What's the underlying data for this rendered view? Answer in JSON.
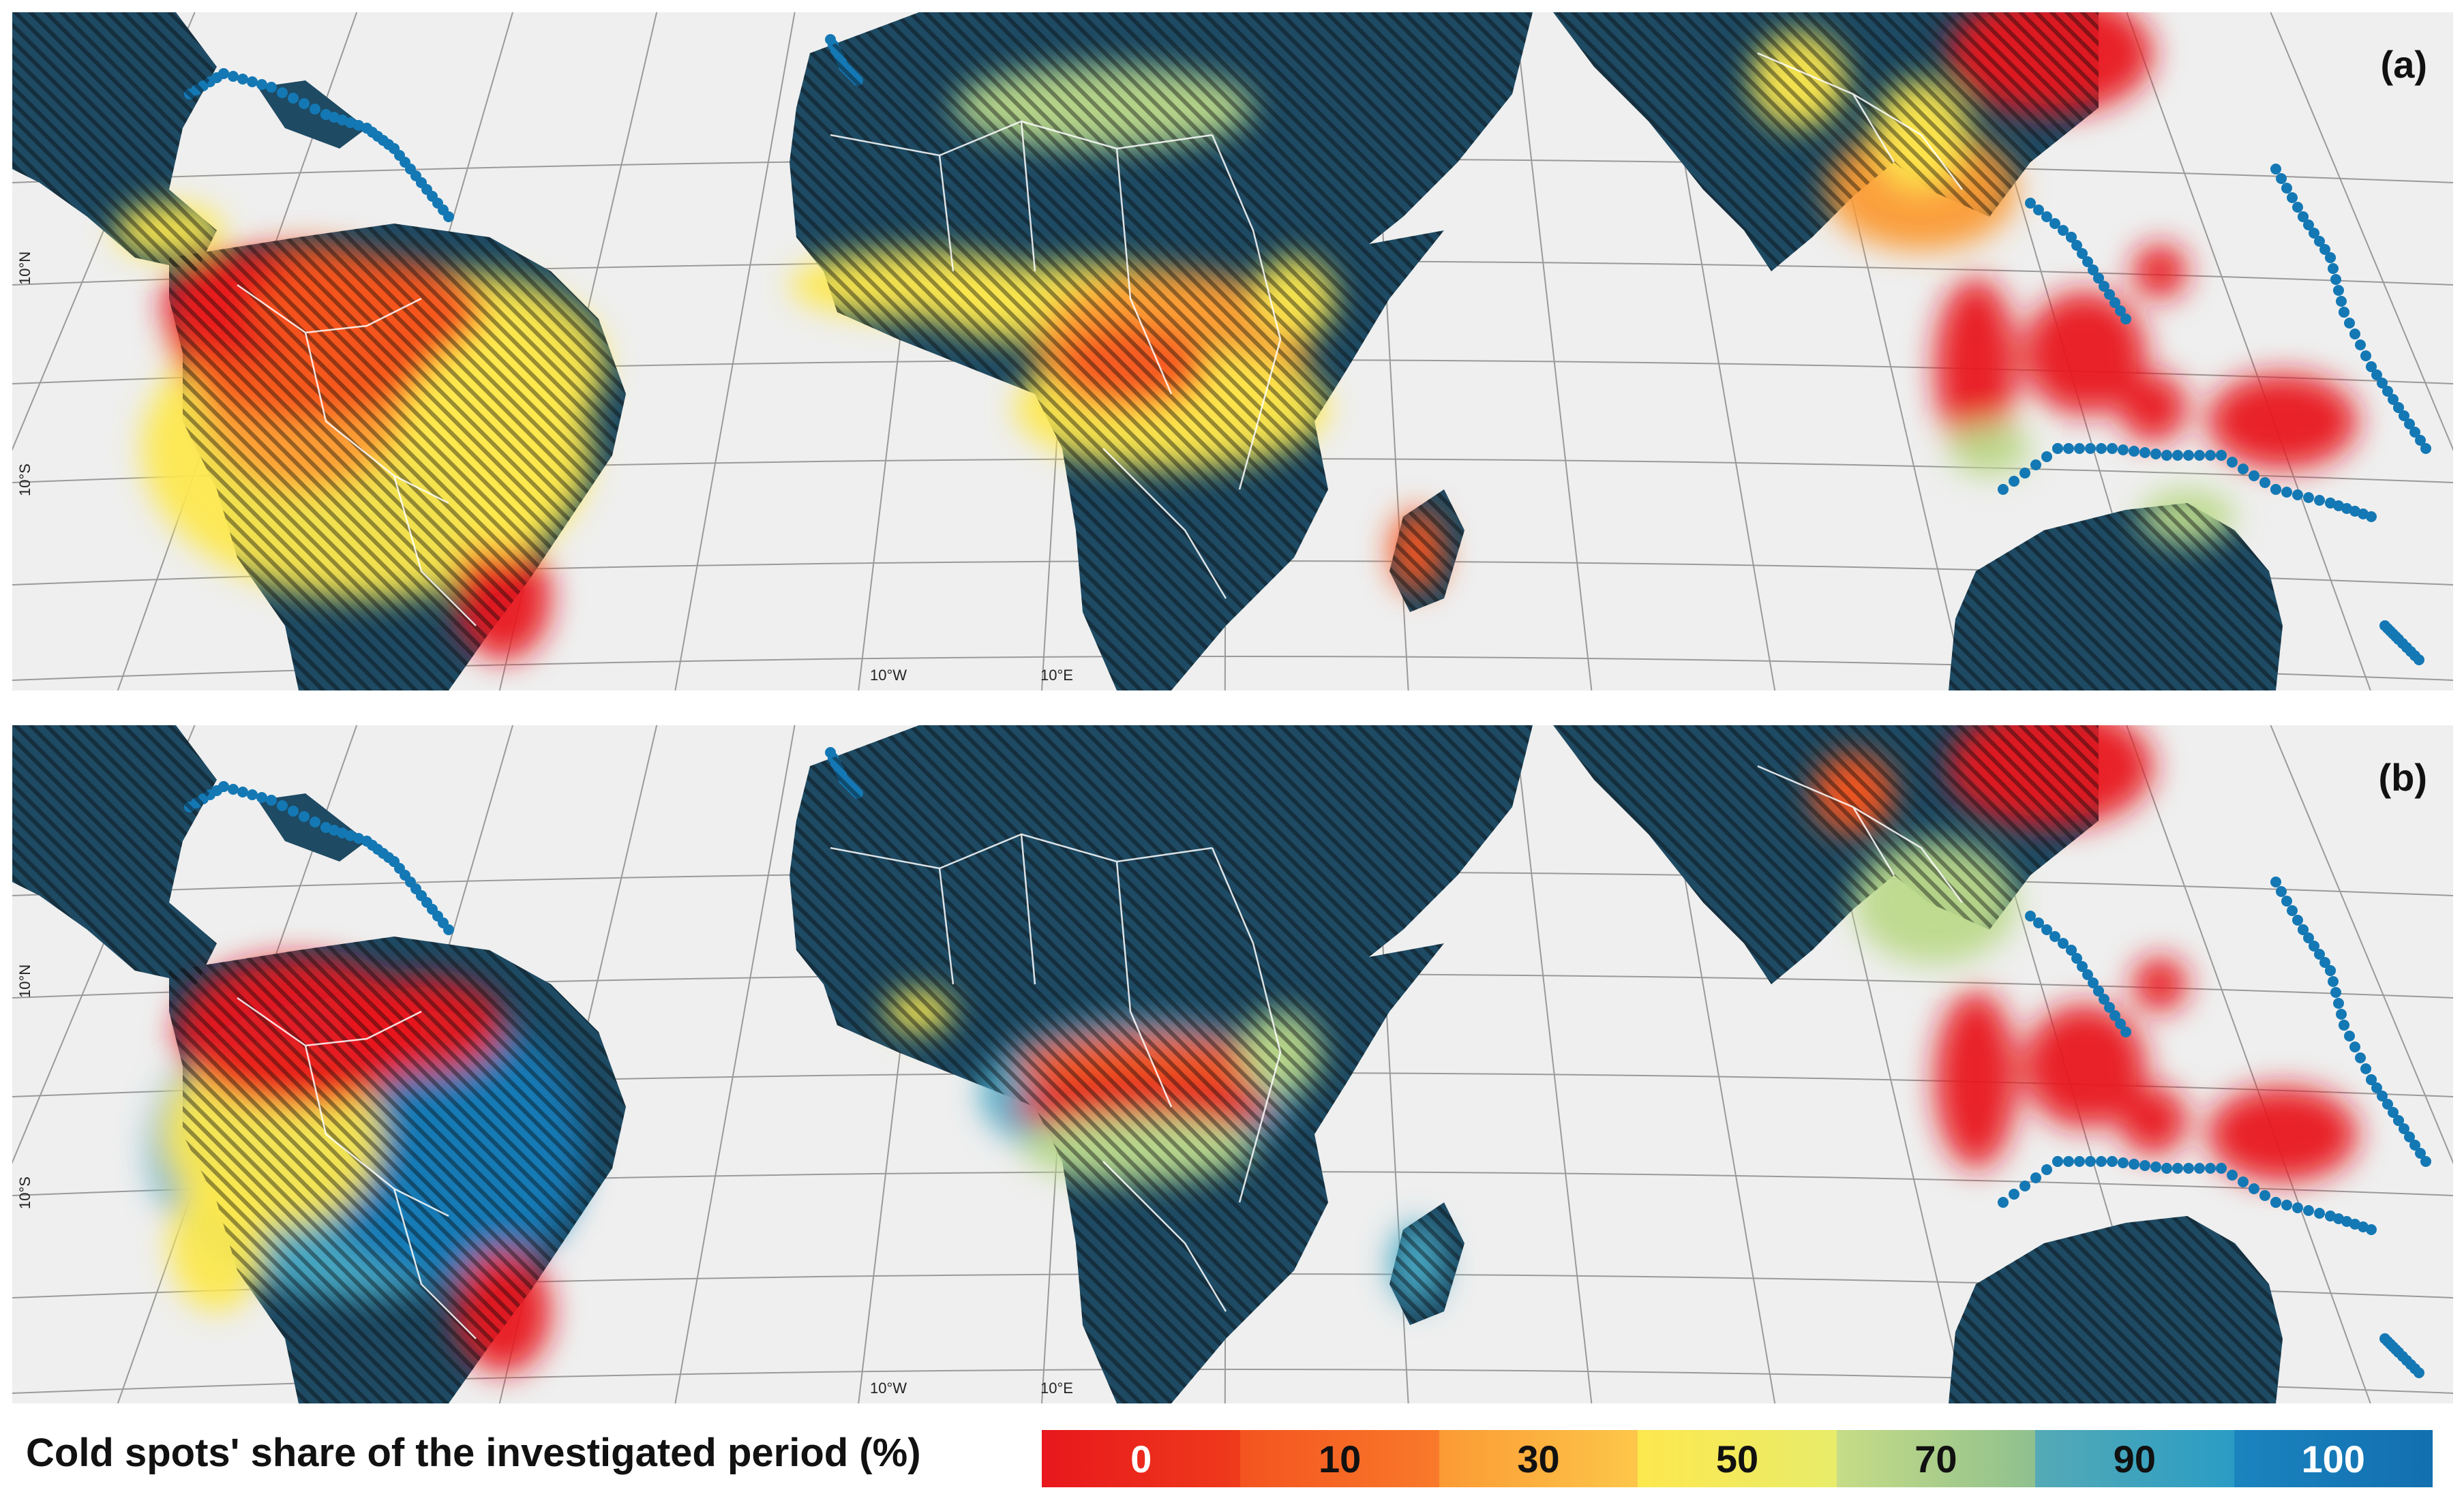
{
  "panels": [
    {
      "label": "(a)"
    },
    {
      "label": "(b)"
    }
  ],
  "graticule": {
    "lat_labels": [
      "10°N",
      "10°S"
    ],
    "lon_labels": [
      "10°W",
      "10°E"
    ]
  },
  "legend": {
    "title": "Cold spots' share of the investigated period (%)",
    "ticks": [
      "0",
      "10",
      "30",
      "50",
      "70",
      "90",
      "100"
    ],
    "tick_text_colors": [
      "#ffffff",
      "#111111",
      "#111111",
      "#111111",
      "#111111",
      "#111111",
      "#ffffff"
    ],
    "colors": [
      "#e8171c",
      "#f4541f",
      "#fb9a33",
      "#fde84e",
      "#bcd98a",
      "#49a9c4",
      "#1478b4"
    ],
    "gradients": [
      [
        "#e8171c",
        "#ef3b1c"
      ],
      [
        "#f4541f",
        "#f97a2a"
      ],
      [
        "#fb9a33",
        "#fdc74a"
      ],
      [
        "#fde84e",
        "#e8ec6a"
      ],
      [
        "#c6dc86",
        "#8fc08e"
      ],
      [
        "#54aab6",
        "#2a9cc4"
      ],
      [
        "#1b84bf",
        "#126fb0"
      ]
    ]
  },
  "map_colors": {
    "ocean": "#efefef",
    "land_nonforest": "#1e4a63",
    "hatch": "#0a0a0a",
    "border": "#ffffff",
    "graticule": "#9a9a9a"
  }
}
